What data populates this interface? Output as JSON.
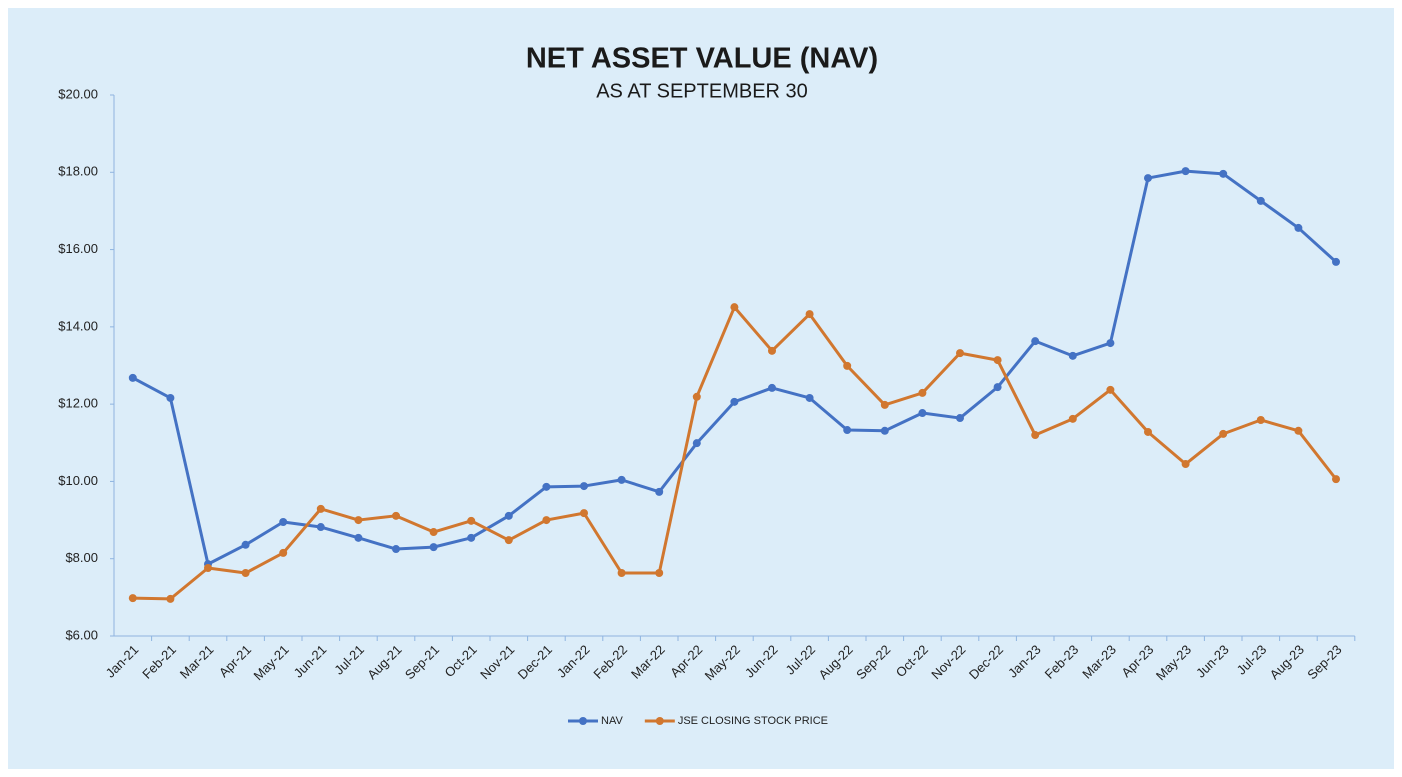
{
  "chart_data": {
    "type": "line",
    "title": "NET ASSET VALUE (NAV)",
    "subtitle": "AS AT SEPTEMBER 30",
    "categories": [
      "Jan-21",
      "Feb-21",
      "Mar-21",
      "Apr-21",
      "May-21",
      "Jun-21",
      "Jul-21",
      "Aug-21",
      "Sep-21",
      "Oct-21",
      "Nov-21",
      "Dec-21",
      "Jan-22",
      "Feb-22",
      "Mar-22",
      "Apr-22",
      "May-22",
      "Jun-22",
      "Jul-22",
      "Aug-22",
      "Sep-22",
      "Oct-22",
      "Nov-22",
      "Dec-22",
      "Jan-23",
      "Feb-23",
      "Mar-23",
      "Apr-23",
      "May-23",
      "Jun-23",
      "Jul-23",
      "Aug-23",
      "Sep-23"
    ],
    "series": [
      {
        "name": "NAV",
        "color": "#4472c4",
        "values": [
          12.68,
          12.16,
          7.86,
          8.36,
          8.95,
          8.82,
          8.54,
          8.25,
          8.3,
          8.54,
          9.11,
          9.86,
          9.88,
          10.04,
          9.73,
          10.99,
          12.06,
          12.42,
          12.16,
          11.33,
          11.31,
          11.77,
          11.64,
          12.44,
          13.63,
          13.25,
          13.58,
          17.85,
          18.03,
          17.96,
          17.26,
          16.56,
          15.68
        ]
      },
      {
        "name": "JSE CLOSING STOCK PRICE",
        "color": "#d1772f",
        "values": [
          6.98,
          6.96,
          7.76,
          7.63,
          8.15,
          9.29,
          9.0,
          9.11,
          8.69,
          8.98,
          8.48,
          9.0,
          9.18,
          7.63,
          7.63,
          12.19,
          14.51,
          13.38,
          14.33,
          12.99,
          11.98,
          12.29,
          13.32,
          13.14,
          11.2,
          11.62,
          12.37,
          11.28,
          10.45,
          11.23,
          11.59,
          11.31,
          10.06
        ]
      }
    ],
    "ylim": [
      6,
      20
    ],
    "yticks": [
      {
        "value": 6,
        "label": "$6.00"
      },
      {
        "value": 8,
        "label": "$8.00"
      },
      {
        "value": 10,
        "label": "$10.00"
      },
      {
        "value": 12,
        "label": "$12.00"
      },
      {
        "value": 14,
        "label": "$14.00"
      },
      {
        "value": 16,
        "label": "$16.00"
      },
      {
        "value": 18,
        "label": "$18.00"
      },
      {
        "value": 20,
        "label": "$20.00"
      }
    ],
    "grid": false,
    "legend": "bottom"
  }
}
